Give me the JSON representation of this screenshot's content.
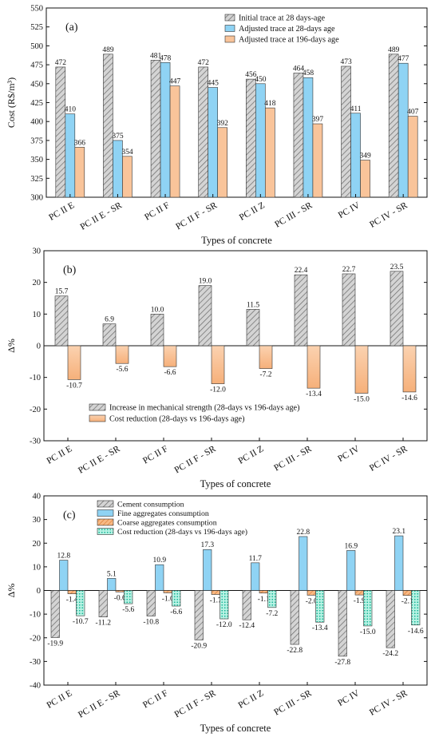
{
  "chart_data": [
    {
      "type": "bar",
      "panel_label": "(a)",
      "xlabel": "Types of concrete",
      "ylabel": "Cost (R$/m³)",
      "ylim": [
        300,
        550
      ],
      "yticks": [
        300,
        325,
        350,
        375,
        400,
        425,
        450,
        475,
        500,
        525,
        550
      ],
      "categories": [
        "PC II E",
        "PC II E - SR",
        "PC II F",
        "PC II F - SR",
        "PC II Z",
        "PC III - SR",
        "PC IV",
        "PC IV - SR"
      ],
      "legend_position": "top-right",
      "series": [
        {
          "name": "Initial trace at 28 days-age",
          "color": "#c8c8c8",
          "pattern": "hatch",
          "values": [
            472,
            489,
            481,
            472,
            456,
            464,
            473,
            489
          ]
        },
        {
          "name": "Adjusted trace at 28-days age",
          "color": "#8fd3f4",
          "pattern": "solid",
          "values": [
            410,
            375,
            478,
            445,
            450,
            458,
            411,
            477
          ]
        },
        {
          "name": "Adjusted trace at 196-days age",
          "color": "#f9c49a",
          "pattern": "solid",
          "values": [
            366,
            354,
            447,
            392,
            418,
            397,
            349,
            407
          ]
        }
      ]
    },
    {
      "type": "bar",
      "panel_label": "(b)",
      "xlabel": "Types of concrete",
      "ylabel": "Δ%",
      "ylim": [
        -30,
        30
      ],
      "yticks": [
        -30,
        -20,
        -10,
        0,
        10,
        20,
        30
      ],
      "categories": [
        "PC II E",
        "PC II E - SR",
        "PC II F",
        "PC II F - SR",
        "PC II Z",
        "PC III - SR",
        "PC IV",
        "PC IV - SR"
      ],
      "legend_position": "bottom-left",
      "series": [
        {
          "name": "Increase in mechanical strength (28-days vs 196-days age)",
          "color": "#c8c8c8",
          "pattern": "hatch",
          "values": [
            15.7,
            6.9,
            10.0,
            19.0,
            11.5,
            22.4,
            22.7,
            23.5
          ]
        },
        {
          "name": "Cost reduction (28-days vs 196-days age)",
          "color": "#f9c49a",
          "pattern": "gradient",
          "values": [
            -10.7,
            -5.6,
            -6.6,
            -12.0,
            -7.2,
            -13.4,
            -15.0,
            -14.6
          ]
        }
      ]
    },
    {
      "type": "bar",
      "panel_label": "(c)",
      "xlabel": "Types of concrete",
      "ylabel": "Δ%",
      "ylim": [
        -40,
        40
      ],
      "yticks": [
        -40,
        -30,
        -20,
        -10,
        0,
        10,
        20,
        30,
        40
      ],
      "categories": [
        "PC II E",
        "PC II E - SR",
        "PC II F",
        "PC II F - SR",
        "PC II Z",
        "PC III - SR",
        "PC IV",
        "PC IV - SR"
      ],
      "legend_position": "top-left",
      "series": [
        {
          "name": "Cement consumption",
          "color": "#c8c8c8",
          "pattern": "hatch",
          "values": [
            -19.9,
            -11.2,
            -10.8,
            -20.9,
            -12.4,
            -22.8,
            -27.8,
            -24.2
          ]
        },
        {
          "name": "Fine aggregates consumption",
          "color": "#8fd3f4",
          "pattern": "solid",
          "values": [
            12.8,
            5.1,
            10.9,
            17.3,
            11.7,
            22.8,
            16.9,
            23.1
          ]
        },
        {
          "name": "Coarse aggregates consumption",
          "color": "#f4a66a",
          "pattern": "hatch",
          "values": [
            -1.4,
            -0.6,
            -1.0,
            -1.7,
            -1.1,
            -2.0,
            -1.9,
            -2.1
          ]
        },
        {
          "name": "Cost reduction (28-days vs 196-days age)",
          "color": "#5fe3c8",
          "pattern": "dots",
          "values": [
            -10.7,
            -5.6,
            -6.6,
            -12.0,
            -7.2,
            -13.4,
            -15.0,
            -14.6
          ]
        }
      ]
    }
  ]
}
